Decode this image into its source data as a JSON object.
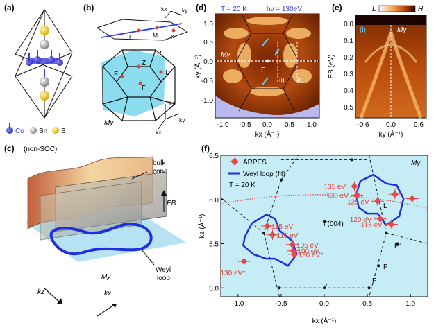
{
  "panels": {
    "a": {
      "label": "(a)",
      "legend": [
        {
          "symbol": "Co",
          "color": "#3b3bd8"
        },
        {
          "symbol": "Sn",
          "color": "#9a9a9a"
        },
        {
          "symbol": "S",
          "color": "#e6c229"
        }
      ]
    },
    "b": {
      "label": "(b)",
      "points": [
        "kx",
        "ky",
        "Γ",
        "M",
        "K",
        "P",
        "Z",
        "F",
        "L",
        "Γ",
        "kz",
        "ky",
        "kx"
      ],
      "plane": "My"
    },
    "c": {
      "label": "(c)",
      "note": "(non-SOC)",
      "bulk_label": "bulk",
      "cone_label": "cone",
      "energy_label": "EB",
      "weyl_label": "Weyl",
      "loop_label": "loop",
      "kz": "kz",
      "kx": "kx",
      "plane": "My"
    },
    "d": {
      "label": "(d)",
      "temp": "T = 20 K",
      "photon": "hν = 130eV",
      "xlabel": "kx (Å⁻¹)",
      "ylabel": "ky (Å⁻¹)",
      "plane": "My",
      "gamma": "Γ",
      "cuts": [
        "(i)",
        "(ii)"
      ],
      "xticks": [
        "-1.0",
        "-0.5",
        "0.0",
        "0.5",
        "1.0"
      ],
      "yticks": [
        "1.0",
        "0.5",
        "0.0",
        "-0.5",
        "-1.0"
      ]
    },
    "e": {
      "label": "(e)",
      "cut": "(i)",
      "plane": "My",
      "cbar_low": "L",
      "cbar_high": "H",
      "xlabel": "ky (Å⁻¹)",
      "ylabel": "EB (eV)",
      "xticks": [
        "-0.6",
        "0.0",
        "0.6"
      ],
      "yticks": [
        "0.0",
        "0.1",
        "0.2",
        "0.3",
        "0.4",
        "0.5"
      ]
    },
    "f": {
      "label": "(f)",
      "legend_arpes": "ARPES",
      "legend_fit": "Weyl loop (fit)",
      "temp": "T = 20 K",
      "plane": "My",
      "xlabel": "kx (Å⁻¹)",
      "ylabel": "kz (Å⁻¹)",
      "xticks": [
        "-1.0",
        "-0.5",
        "0.0",
        "0.5",
        "1.0"
      ],
      "yticks": [
        "6.5",
        "6.0",
        "5.5",
        "5.0"
      ],
      "points_labels": [
        "L",
        "Γ(004)",
        "P1",
        "F",
        "Z",
        "P"
      ],
      "energies_left": [
        "115 eV",
        "110 eV",
        "105 eV",
        "100 eV",
        "130 eV*",
        "130 eV*"
      ],
      "energies_right": [
        "135 eV",
        "130 eV",
        "125 eV",
        "120 eV",
        "115 eV"
      ]
    }
  },
  "chart_data": {
    "type": "scatter",
    "title": "",
    "xlabel": "kx (Å⁻¹)",
    "ylabel": "kz (Å⁻¹)",
    "xlim": [
      -1.2,
      1.2
    ],
    "ylim": [
      4.9,
      6.5
    ],
    "series": [
      {
        "name": "ARPES",
        "points": [
          {
            "x": -0.93,
            "y": 5.3,
            "label": "130 eV*"
          },
          {
            "x": -0.66,
            "y": 5.7,
            "label": "115 eV"
          },
          {
            "x": -0.6,
            "y": 5.6,
            "label": "110 eV"
          },
          {
            "x": -0.37,
            "y": 5.49,
            "label": "105 eV"
          },
          {
            "x": -0.36,
            "y": 5.42,
            "label": "100 eV"
          },
          {
            "x": -0.35,
            "y": 5.38,
            "label": "130 eV*"
          },
          {
            "x": 0.35,
            "y": 6.15,
            "label": "135 eV"
          },
          {
            "x": 0.38,
            "y": 6.05,
            "label": "130 eV"
          },
          {
            "x": 0.62,
            "y": 5.98,
            "label": "125 eV"
          },
          {
            "x": 0.65,
            "y": 5.78,
            "label": "120 eV"
          },
          {
            "x": 0.78,
            "y": 5.72,
            "label": "115 eV"
          },
          {
            "x": 0.82,
            "y": 6.06,
            "label": ""
          },
          {
            "x": 1.02,
            "y": 6.01,
            "label": ""
          }
        ]
      },
      {
        "name": "Weyl loop (fit)",
        "points": []
      }
    ]
  }
}
